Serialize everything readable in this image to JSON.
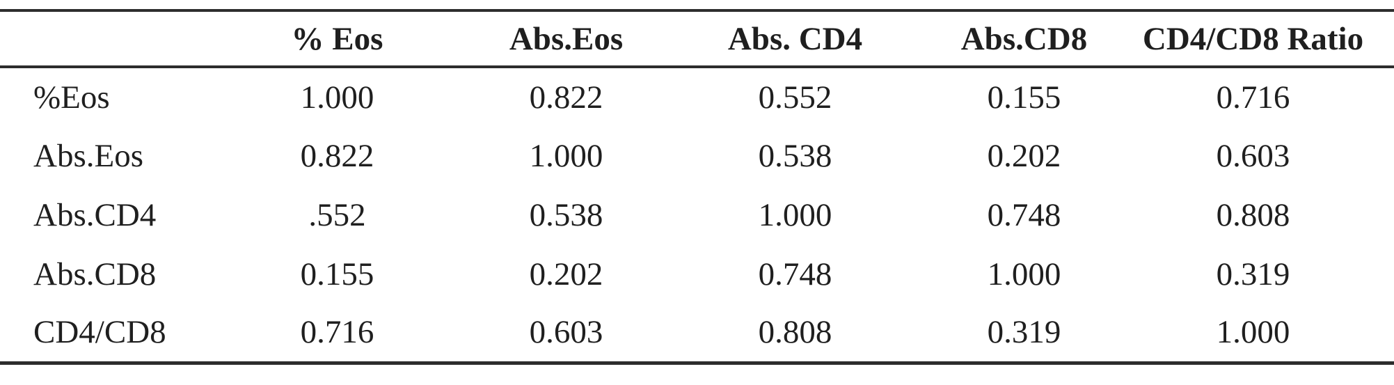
{
  "table": {
    "corner_label": "",
    "columns": [
      "% Eos",
      "Abs.Eos",
      "Abs. CD4",
      "Abs.CD8",
      "CD4/CD8 Ratio"
    ],
    "rows": [
      {
        "label": "%Eos",
        "values": [
          "1.000",
          "0.822",
          "0.552",
          "0.155",
          "0.716"
        ]
      },
      {
        "label": "Abs.Eos",
        "values": [
          "0.822",
          "1.000",
          "0.538",
          "0.202",
          "0.603"
        ]
      },
      {
        "label": "Abs.CD4",
        "values": [
          ".552",
          "0.538",
          "1.000",
          "0.748",
          "0.808"
        ]
      },
      {
        "label": "Abs.CD8",
        "values": [
          "0.155",
          "0.202",
          "0.748",
          "1.000",
          "0.319"
        ]
      },
      {
        "label": "CD4/CD8",
        "values": [
          "0.716",
          "0.603",
          "0.808",
          "0.319",
          "1.000"
        ]
      }
    ]
  },
  "colors": {
    "background": "#ffffff",
    "text": "#1f1f1f",
    "rule": "#2d2d2d"
  },
  "chart_data": {
    "type": "table",
    "columns": [
      "% Eos",
      "Abs.Eos",
      "Abs. CD4",
      "Abs.CD8",
      "CD4/CD8 Ratio"
    ],
    "row_labels": [
      "%Eos",
      "Abs.Eos",
      "Abs.CD4",
      "Abs.CD8",
      "CD4/CD8"
    ],
    "values": [
      [
        1.0,
        0.822,
        0.552,
        0.155,
        0.716
      ],
      [
        0.822,
        1.0,
        0.538,
        0.202,
        0.603
      ],
      [
        0.552,
        0.538,
        1.0,
        0.748,
        0.808
      ],
      [
        0.155,
        0.202,
        0.748,
        1.0,
        0.319
      ],
      [
        0.716,
        0.603,
        0.808,
        0.319,
        1.0
      ]
    ]
  }
}
